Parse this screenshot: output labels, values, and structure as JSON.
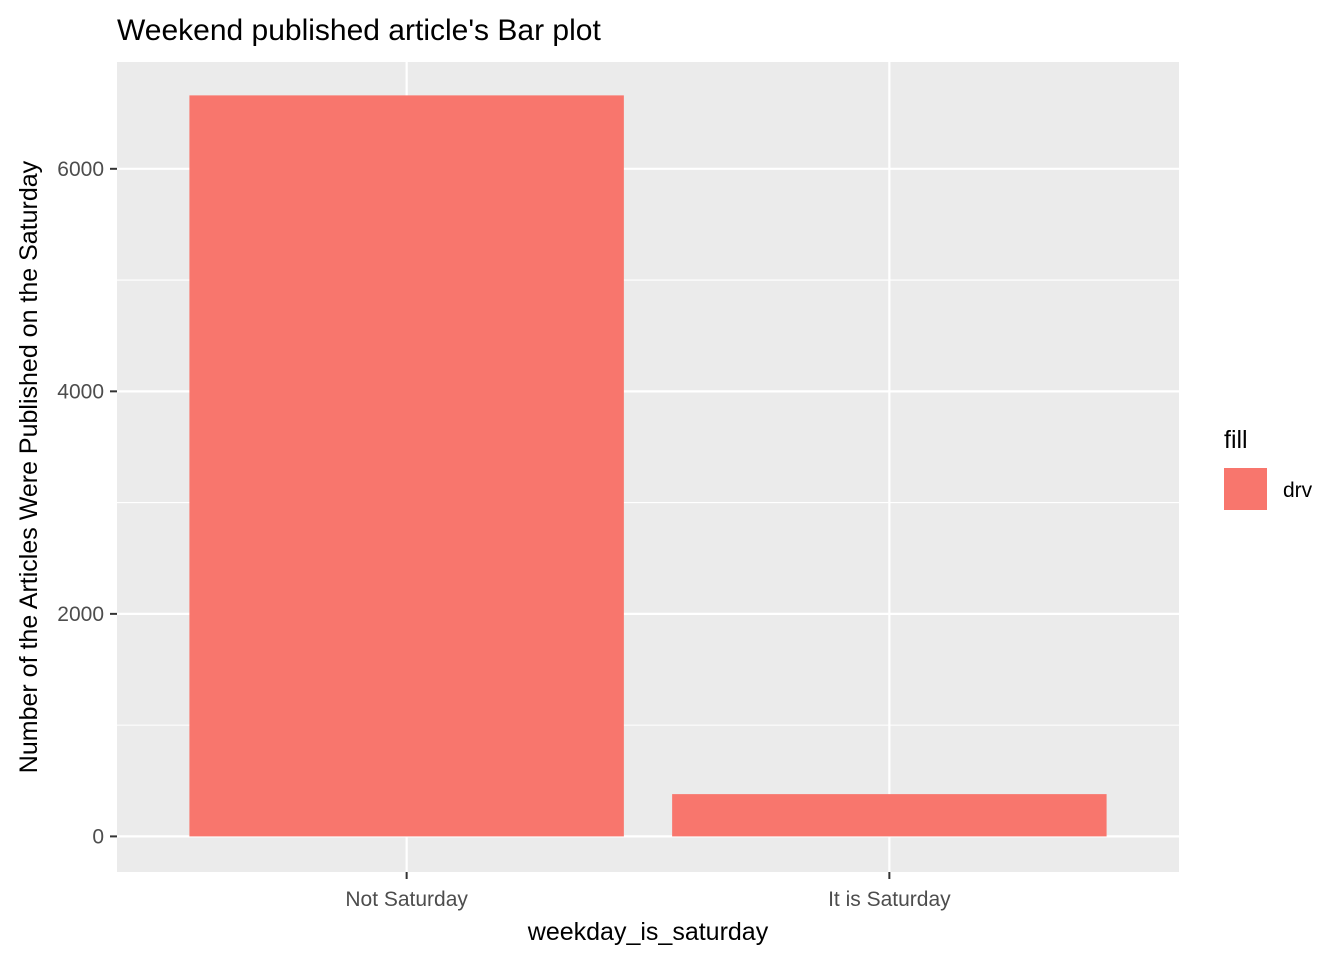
{
  "chart_data": {
    "type": "bar",
    "title": "Weekend published article's Bar plot",
    "xlabel": "weekday_is_saturday",
    "ylabel": "Number of the Articles Were Published on the Saturday",
    "categories": [
      "Not Saturday",
      "It is Saturday"
    ],
    "values": [
      6660,
      380
    ],
    "ylim": [
      -320,
      6960
    ],
    "yticks": [
      0,
      2000,
      4000,
      6000
    ],
    "ytick_labels": [
      "0",
      "2000",
      "4000",
      "6000"
    ],
    "grid": true,
    "legend": {
      "title": "fill",
      "placement": "right",
      "entries": [
        {
          "label": "drv",
          "color": "#F8766D"
        }
      ]
    },
    "colors": {
      "bar": "#F8766D",
      "panel_background": "#EBEBEB",
      "gridline": "#FFFFFF",
      "tick": "#333333"
    }
  }
}
